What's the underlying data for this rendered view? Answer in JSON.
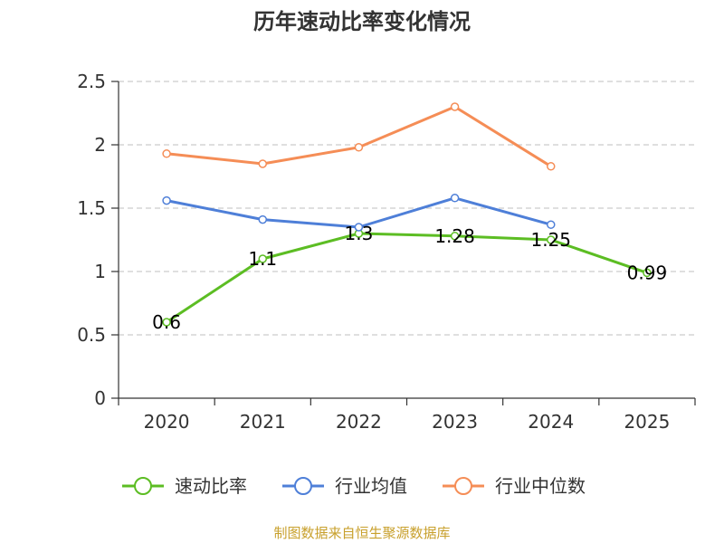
{
  "chart_data": {
    "type": "line",
    "title": "历年速动比率变化情况",
    "categories": [
      "2020",
      "2021",
      "2022",
      "2023",
      "2024",
      "2025"
    ],
    "ylim": [
      0,
      2.5
    ],
    "yticks": [
      "0",
      "0.5",
      "1",
      "1.5",
      "2",
      "2.5"
    ],
    "grid": true,
    "legend_position": "bottom",
    "series": [
      {
        "name": "速动比率",
        "color": "#5cbd23",
        "values": [
          0.6,
          1.1,
          1.3,
          1.28,
          1.25,
          0.99
        ],
        "labels": [
          "0.6",
          "1.1",
          "1.3",
          "1.28",
          "1.25",
          "0.99"
        ]
      },
      {
        "name": "行业均值",
        "color": "#4e7fd8",
        "values": [
          1.56,
          1.41,
          1.35,
          1.58,
          1.37,
          null
        ]
      },
      {
        "name": "行业中位数",
        "color": "#f58d56",
        "values": [
          1.93,
          1.85,
          1.98,
          2.3,
          1.83,
          null
        ]
      }
    ]
  },
  "source": {
    "text": "制图数据来自恒生聚源数据库",
    "color": "#c8a02c"
  }
}
